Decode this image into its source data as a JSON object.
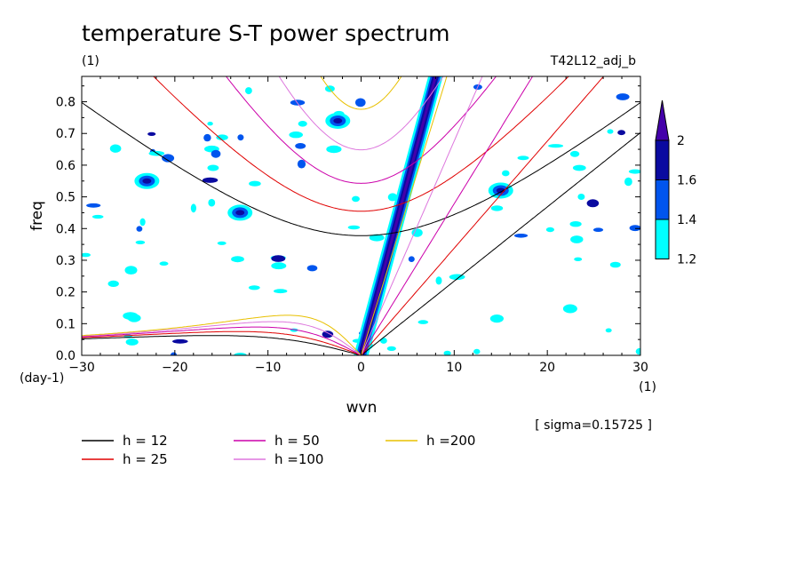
{
  "chart_data": {
    "type": "contour",
    "title": "temperature S-T power spectrum",
    "title_unit": "(1)",
    "run_label": "T42L12_adj_b",
    "xlabel": "wvn",
    "xunit": "(1)",
    "ylabel": "freq",
    "yunit": "(day-1)",
    "sigma_note": "[ sigma=0.15725 ]",
    "xlim": [
      -30,
      30
    ],
    "ylim": [
      0,
      0.88
    ],
    "xticks": [
      "-30",
      "-20",
      "-10",
      "0",
      "10",
      "20",
      "30"
    ],
    "yticks": [
      "0.0",
      "0.1",
      "0.2",
      "0.3",
      "0.4",
      "0.5",
      "0.6",
      "0.7",
      "0.8"
    ],
    "colorbar": {
      "levels": [
        "1.2",
        "1.4",
        "1.6",
        "2"
      ],
      "colors": [
        "#00ffff",
        "#0055ee",
        "#0a0aa0",
        "#4400aa"
      ]
    },
    "dispersion_curves": [
      {
        "label": "h = 12",
        "h": 12,
        "color": "#000000"
      },
      {
        "label": "h = 25",
        "h": 25,
        "color": "#e00000"
      },
      {
        "label": "h = 50",
        "h": 50,
        "color": "#cc00aa"
      },
      {
        "label": "h =100",
        "h": 100,
        "color": "#dd77dd"
      },
      {
        "label": "h =200",
        "h": 200,
        "color": "#e8c000"
      }
    ],
    "spectral_features": [
      {
        "name": "main ridge",
        "x_start": 0,
        "y_start": 0,
        "x_end": 8,
        "y_end": 0.88
      },
      {
        "name": "upper-left blob",
        "x": -2.5,
        "y": 0.74
      },
      {
        "name": "mid-left blob",
        "x": -13,
        "y": 0.45
      },
      {
        "name": "left blob",
        "x": -23,
        "y": 0.55
      },
      {
        "name": "right blob",
        "x": 15,
        "y": 0.52
      }
    ]
  }
}
